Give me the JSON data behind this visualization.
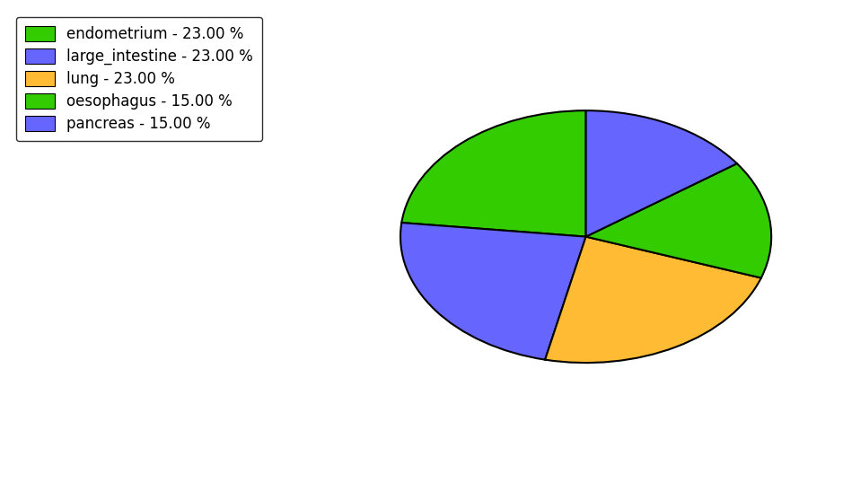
{
  "labels": [
    "endometrium",
    "large_intestine",
    "lung",
    "oesophagus",
    "pancreas"
  ],
  "values": [
    23,
    23,
    23,
    15,
    15
  ],
  "colors": [
    "#33cc00",
    "#6666ff",
    "#ffbb33",
    "#33cc00",
    "#6666ff"
  ],
  "legend_labels": [
    "endometrium - 23.00 %",
    "large_intestine - 23.00 %",
    "lung - 23.00 %",
    "oesophagus - 15.00 %",
    "pancreas - 15.00 %"
  ],
  "legend_colors": [
    "#33cc00",
    "#6666ff",
    "#ffbb33",
    "#33cc00",
    "#6666ff"
  ],
  "startangle": 90,
  "figsize": [
    9.39,
    5.38
  ],
  "dpi": 100
}
